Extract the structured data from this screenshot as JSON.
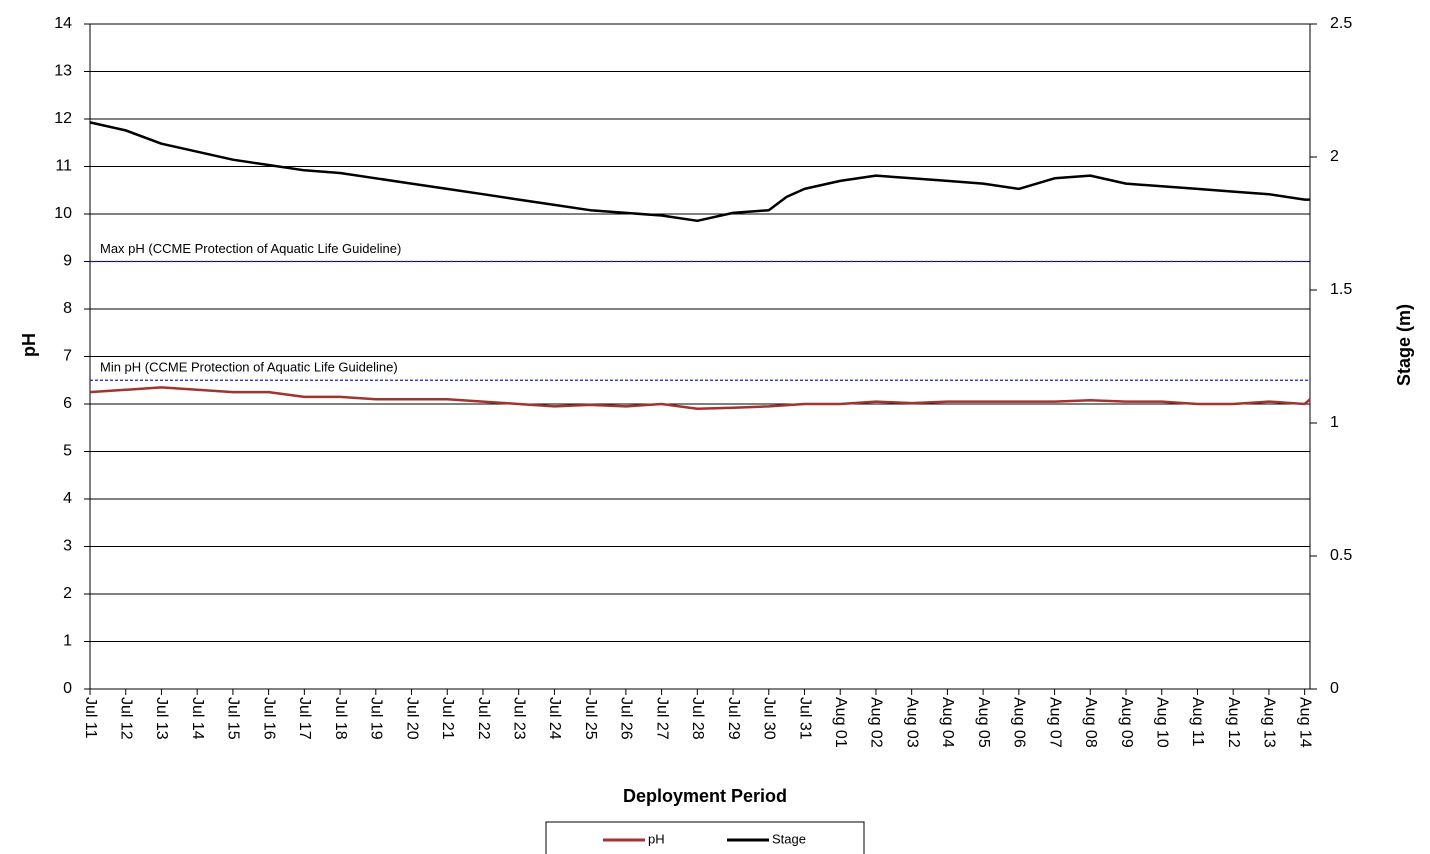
{
  "chart_data": {
    "type": "line",
    "xlabel": "Deployment Period",
    "ylabel": "pH",
    "y2label": "Stage (m)",
    "xlim": [
      0,
      34.15
    ],
    "xticks": [
      {
        "value": 0,
        "label": "Jul 11"
      },
      {
        "value": 1,
        "label": "Jul 12"
      },
      {
        "value": 2,
        "label": "Jul 13"
      },
      {
        "value": 3,
        "label": "Jul 14"
      },
      {
        "value": 4,
        "label": "Jul 15"
      },
      {
        "value": 5,
        "label": "Jul 16"
      },
      {
        "value": 6,
        "label": "Jul 17"
      },
      {
        "value": 7,
        "label": "Jul 18"
      },
      {
        "value": 8,
        "label": "Jul 19"
      },
      {
        "value": 9,
        "label": "Jul 20"
      },
      {
        "value": 10,
        "label": "Jul 21"
      },
      {
        "value": 11,
        "label": "Jul 22"
      },
      {
        "value": 12,
        "label": "Jul 23"
      },
      {
        "value": 13,
        "label": "Jul 24"
      },
      {
        "value": 14,
        "label": "Jul 25"
      },
      {
        "value": 15,
        "label": "Jul 26"
      },
      {
        "value": 16,
        "label": "Jul 27"
      },
      {
        "value": 17,
        "label": "Jul 28"
      },
      {
        "value": 18,
        "label": "Jul 29"
      },
      {
        "value": 19,
        "label": "Jul 30"
      },
      {
        "value": 20,
        "label": "Jul 31"
      },
      {
        "value": 21,
        "label": "Aug 01"
      },
      {
        "value": 22,
        "label": "Aug 02"
      },
      {
        "value": 23,
        "label": "Aug 03"
      },
      {
        "value": 24,
        "label": "Aug 04"
      },
      {
        "value": 25,
        "label": "Aug 05"
      },
      {
        "value": 26,
        "label": "Aug 06"
      },
      {
        "value": 27,
        "label": "Aug 07"
      },
      {
        "value": 28,
        "label": "Aug 08"
      },
      {
        "value": 29,
        "label": "Aug 09"
      },
      {
        "value": 30,
        "label": "Aug 10"
      },
      {
        "value": 31,
        "label": "Aug 11"
      },
      {
        "value": 32,
        "label": "Aug 12"
      },
      {
        "value": 33,
        "label": "Aug 13"
      },
      {
        "value": 34,
        "label": "Aug 14"
      }
    ],
    "ylim": [
      0,
      14
    ],
    "yticks": [
      0,
      1,
      2,
      3,
      4,
      5,
      6,
      7,
      8,
      9,
      10,
      11,
      12,
      13,
      14
    ],
    "y2lim": [
      0,
      2.5
    ],
    "y2ticks": [
      0,
      0.5,
      1,
      1.5,
      2,
      2.5
    ],
    "grid": true,
    "legend": "bottom",
    "reference_lines": [
      {
        "label": "Max pH  (CCME  Protection of Aquatic Life Guideline)",
        "value": 9,
        "color": "#1a1acc"
      },
      {
        "label": "Min pH  (CCME  Protection of Aquatic Life Guideline)",
        "value": 6.5,
        "color": "#1a1acc"
      }
    ],
    "series": [
      {
        "name": "pH",
        "color": "#a0342f",
        "x": [
          0,
          1,
          2,
          3,
          4,
          5,
          6,
          7,
          8,
          9,
          10,
          11,
          12,
          13,
          14,
          15,
          16,
          17,
          18,
          19,
          20,
          21,
          22,
          23,
          24,
          25,
          26,
          27,
          28,
          29,
          30,
          31,
          32,
          33,
          34,
          34.15
        ],
        "values": [
          6.25,
          6.3,
          6.35,
          6.3,
          6.25,
          6.25,
          6.15,
          6.15,
          6.1,
          6.1,
          6.1,
          6.05,
          6.0,
          5.95,
          5.98,
          5.95,
          6.0,
          5.9,
          5.92,
          5.95,
          6.0,
          6.0,
          6.05,
          6.02,
          6.05,
          6.05,
          6.05,
          6.05,
          6.08,
          6.05,
          6.05,
          6.0,
          6.0,
          6.05,
          6.0,
          6.1
        ]
      },
      {
        "name": "Stage",
        "color": "#000000",
        "axis": "y2",
        "x": [
          0,
          1,
          2,
          3,
          4,
          5,
          6,
          7,
          8,
          9,
          10,
          11,
          12,
          13,
          14,
          15,
          16,
          17,
          18,
          19,
          19.5,
          20,
          21,
          22,
          23,
          24,
          25,
          26,
          27,
          28,
          29,
          30,
          31,
          32,
          33,
          34,
          34.15
        ],
        "values": [
          2.13,
          2.1,
          2.05,
          2.02,
          1.99,
          1.97,
          1.95,
          1.94,
          1.92,
          1.9,
          1.88,
          1.86,
          1.84,
          1.82,
          1.8,
          1.79,
          1.78,
          1.76,
          1.79,
          1.8,
          1.85,
          1.88,
          1.91,
          1.93,
          1.92,
          1.91,
          1.9,
          1.88,
          1.92,
          1.93,
          1.9,
          1.89,
          1.88,
          1.87,
          1.86,
          1.84,
          1.84
        ]
      }
    ]
  }
}
